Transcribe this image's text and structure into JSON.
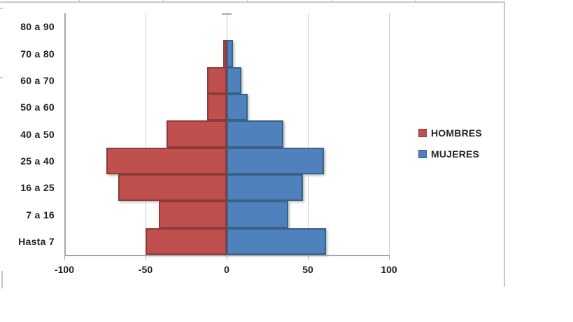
{
  "chart_data": {
    "type": "bar",
    "orientation": "horizontal",
    "categories": [
      "80 a 90",
      "70 a 80",
      "60 a 70",
      "50 a 60",
      "40 a 50",
      "25 a 40",
      "16 a 25",
      "7 a 16",
      "Hasta 7"
    ],
    "series": [
      {
        "name": "HOMBRES",
        "color": "#C0504D",
        "border_color": "#8E3B39",
        "values": [
          0,
          -2,
          -12,
          -12,
          -37,
          -74,
          -67,
          -42,
          -50
        ]
      },
      {
        "name": "MUJERES",
        "color": "#4F81BD",
        "border_color": "#3A6186",
        "values": [
          0,
          4,
          9,
          13,
          35,
          60,
          47,
          38,
          61
        ]
      }
    ],
    "xlim": [
      -100,
      100
    ],
    "x_ticks": [
      -100,
      -50,
      0,
      50,
      100
    ],
    "x_tick_labels": [
      "-100",
      "-50",
      "0",
      "50",
      "100"
    ],
    "grid": true,
    "legend_position": "right",
    "gap_width_percent": 0
  },
  "legend": {
    "items": [
      {
        "label": "HOMBRES",
        "color": "#C0504D",
        "border_color": "#8E3B39"
      },
      {
        "label": "MUJERES",
        "color": "#4F81BD",
        "border_color": "#3A6186"
      }
    ]
  },
  "colors": {
    "background": "#FFFFFF",
    "gridline": "#C9C9C9",
    "axis_line": "#A6A6A6",
    "axis_text": "#212121",
    "chart_border": "#C9C9C9"
  }
}
